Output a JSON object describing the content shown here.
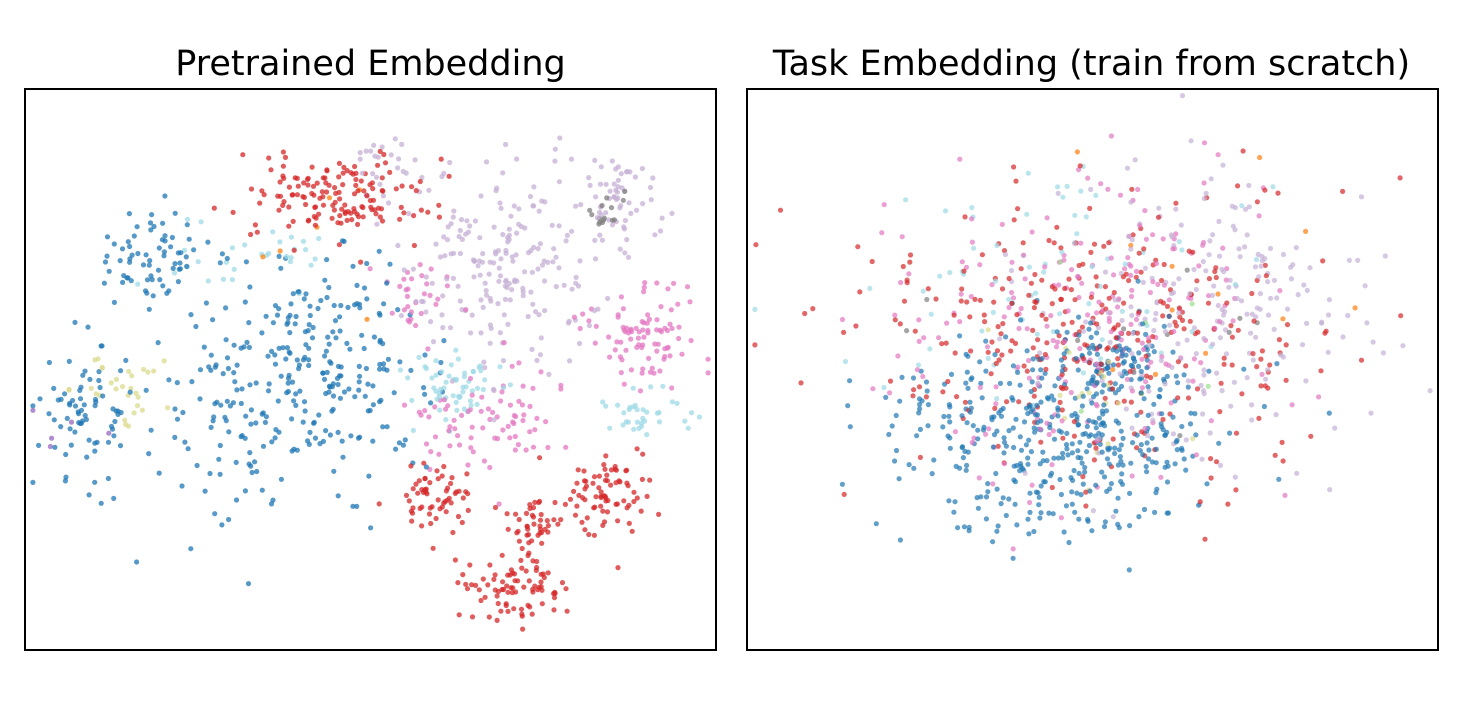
{
  "chart_data": [
    {
      "type": "scatter",
      "title": "Pretrained Embedding",
      "xlabel": "",
      "ylabel": "",
      "xlim": [
        0,
        100
      ],
      "ylim": [
        0,
        100
      ],
      "grid": false,
      "axes_ticks": false,
      "point_opacity": 0.75,
      "palette": {
        "blue": "#1f77b4",
        "red": "#d62728",
        "lavender": "#c5b0d5",
        "pink": "#e377c2",
        "cyan": "#9edae5",
        "olive": "#dbdb8d",
        "gray": "#7f7f7f",
        "orange": "#ff7f0e",
        "purple": "#9467bd",
        "green": "#98df8a"
      },
      "clusters": [
        {
          "color": "blue",
          "center": [
            18,
            70
          ],
          "spread": [
            4.5,
            4.5
          ],
          "count": 70
        },
        {
          "color": "blue",
          "center": [
            9,
            42
          ],
          "spread": [
            3.5,
            6
          ],
          "count": 70
        },
        {
          "color": "blue",
          "center": [
            43,
            50
          ],
          "spread": [
            8,
            9
          ],
          "count": 220
        },
        {
          "color": "blue",
          "center": [
            29,
            43
          ],
          "spread": [
            7,
            12
          ],
          "count": 90
        },
        {
          "color": "red",
          "center": [
            45,
            81
          ],
          "spread": [
            7,
            4
          ],
          "count": 150
        },
        {
          "color": "red",
          "center": [
            59,
            27
          ],
          "spread": [
            3,
            3
          ],
          "count": 60
        },
        {
          "color": "red",
          "center": [
            74,
            23
          ],
          "spread": [
            2,
            2.5
          ],
          "count": 40
        },
        {
          "color": "red",
          "center": [
            85,
            28
          ],
          "spread": [
            3.5,
            4
          ],
          "count": 80
        },
        {
          "color": "red",
          "center": [
            71,
            11
          ],
          "spread": [
            3.5,
            3
          ],
          "count": 85
        },
        {
          "color": "lavender",
          "center": [
            70,
            68
          ],
          "spread": [
            7,
            9
          ],
          "count": 200
        },
        {
          "color": "lavender",
          "center": [
            86,
            80
          ],
          "spread": [
            3,
            4.5
          ],
          "count": 60
        },
        {
          "color": "lavender",
          "center": [
            53,
            86
          ],
          "spread": [
            3,
            3
          ],
          "count": 25
        },
        {
          "color": "pink",
          "center": [
            89,
            57
          ],
          "spread": [
            4.5,
            5
          ],
          "count": 90
        },
        {
          "color": "pink",
          "center": [
            67,
            42
          ],
          "spread": [
            6,
            5
          ],
          "count": 80
        },
        {
          "color": "pink",
          "center": [
            58,
            63
          ],
          "spread": [
            3,
            3
          ],
          "count": 30
        },
        {
          "color": "cyan",
          "center": [
            62,
            47
          ],
          "spread": [
            4,
            3
          ],
          "count": 60
        },
        {
          "color": "cyan",
          "center": [
            90,
            42
          ],
          "spread": [
            4,
            2.5
          ],
          "count": 35
        },
        {
          "color": "cyan",
          "center": [
            35,
            70
          ],
          "spread": [
            6,
            4
          ],
          "count": 30
        },
        {
          "color": "olive",
          "center": [
            14,
            47
          ],
          "spread": [
            5,
            3.5
          ],
          "count": 30
        },
        {
          "color": "gray",
          "center": [
            84,
            78
          ],
          "spread": [
            2,
            2
          ],
          "count": 15
        },
        {
          "color": "orange",
          "center": [
            43,
            70
          ],
          "spread": [
            6,
            6
          ],
          "count": 6
        },
        {
          "color": "purple",
          "center": [
            8,
            39
          ],
          "spread": [
            4,
            4
          ],
          "count": 5
        }
      ]
    },
    {
      "type": "scatter",
      "title": "Task Embedding (train from scratch)",
      "xlabel": "",
      "ylabel": "",
      "xlim": [
        0,
        100
      ],
      "ylim": [
        0,
        100
      ],
      "grid": false,
      "axes_ticks": false,
      "point_opacity": 0.7,
      "palette": {
        "blue": "#1f77b4",
        "red": "#d62728",
        "lavender": "#c5b0d5",
        "pink": "#e377c2",
        "cyan": "#9edae5",
        "olive": "#dbdb8d",
        "gray": "#7f7f7f",
        "orange": "#ff7f0e",
        "green": "#98df8a"
      },
      "clusters": [
        {
          "color": "blue",
          "center": [
            44,
            37
          ],
          "spread": [
            12,
            9
          ],
          "count": 380
        },
        {
          "color": "blue",
          "center": [
            52,
            50
          ],
          "spread": [
            5,
            5
          ],
          "count": 120
        },
        {
          "color": "red",
          "center": [
            50,
            56
          ],
          "spread": [
            16,
            13
          ],
          "count": 330
        },
        {
          "color": "pink",
          "center": [
            50,
            58
          ],
          "spread": [
            14,
            13
          ],
          "count": 220
        },
        {
          "color": "lavender",
          "center": [
            66,
            60
          ],
          "spread": [
            12,
            13
          ],
          "count": 220
        },
        {
          "color": "cyan",
          "center": [
            45,
            60
          ],
          "spread": [
            13,
            12
          ],
          "count": 70
        },
        {
          "color": "olive",
          "center": [
            48,
            45
          ],
          "spread": [
            8,
            8
          ],
          "count": 18
        },
        {
          "color": "gray",
          "center": [
            60,
            50
          ],
          "spread": [
            15,
            10
          ],
          "count": 12
        },
        {
          "color": "orange",
          "center": [
            55,
            65
          ],
          "spread": [
            14,
            12
          ],
          "count": 12
        },
        {
          "color": "green",
          "center": [
            55,
            55
          ],
          "spread": [
            12,
            10
          ],
          "count": 6
        }
      ]
    }
  ]
}
